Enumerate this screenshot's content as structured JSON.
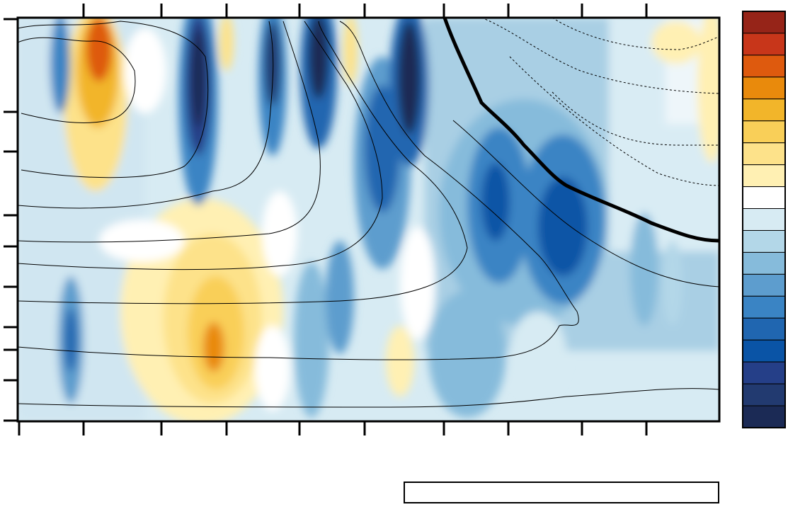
{
  "chart_data": {
    "type": "heatmap",
    "title": "",
    "xlabel": "",
    "ylabel": "",
    "grid": false,
    "colorbar": {
      "placement": "right",
      "levels": 18,
      "colors": [
        "#1b2a55",
        "#223a70",
        "#253f88",
        "#0a54a6",
        "#2066b0",
        "#3a84c4",
        "#5d9dce",
        "#86bbdb",
        "#b3d7e8",
        "#d7ebf3",
        "#ffffff",
        "#fff0b3",
        "#fde28a",
        "#f9cf58",
        "#f2b52a",
        "#e98a0c",
        "#de5a0e",
        "#c8361a",
        "#962418"
      ]
    },
    "caption": ""
  }
}
